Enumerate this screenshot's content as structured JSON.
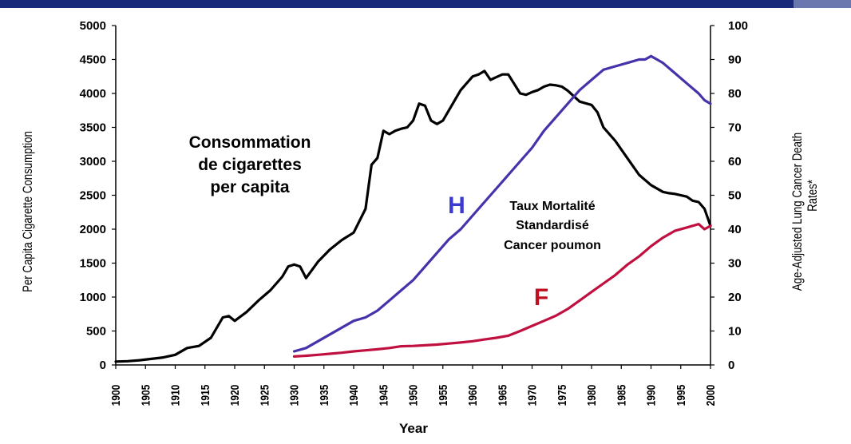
{
  "chart_data": {
    "type": "line",
    "xlabel": "Year",
    "ylabel_left": "Per Capita Cigarette Consumption",
    "ylabel_right_line1": "Age-Adjusted Lung Cancer Death",
    "ylabel_right_line2": "Rates*",
    "xlim": [
      1900,
      2000
    ],
    "ylim_left": [
      0,
      5000
    ],
    "ylim_right": [
      0,
      100
    ],
    "x_ticks": [
      "1900",
      "1905",
      "1910",
      "1915",
      "1920",
      "1925",
      "1930",
      "1935",
      "1940",
      "1945",
      "1950",
      "1955",
      "1960",
      "1965",
      "1970",
      "1975",
      "1980",
      "1985",
      "1990",
      "1995",
      "2000"
    ],
    "y_left_ticks": [
      "0",
      "500",
      "1000",
      "1500",
      "2000",
      "2500",
      "3000",
      "3500",
      "4000",
      "4500",
      "5000"
    ],
    "y_right_ticks": [
      "0",
      "10",
      "20",
      "30",
      "40",
      "50",
      "60",
      "70",
      "80",
      "90",
      "100"
    ],
    "series": [
      {
        "name": "Consommation de cigarettes per capita",
        "axis": "left",
        "color": "#000000",
        "x": [
          1900,
          1902,
          1904,
          1906,
          1908,
          1910,
          1912,
          1914,
          1916,
          1918,
          1919,
          1920,
          1922,
          1924,
          1926,
          1928,
          1929,
          1930,
          1931,
          1932,
          1934,
          1936,
          1938,
          1940,
          1942,
          1943,
          1944,
          1945,
          1946,
          1947,
          1948,
          1949,
          1950,
          1951,
          1952,
          1953,
          1954,
          1955,
          1956,
          1958,
          1960,
          1961,
          1962,
          1963,
          1964,
          1965,
          1966,
          1968,
          1969,
          1970,
          1971,
          1972,
          1973,
          1974,
          1975,
          1976,
          1978,
          1980,
          1981,
          1982,
          1984,
          1986,
          1988,
          1990,
          1992,
          1993,
          1994,
          1996,
          1997,
          1998,
          1999,
          2000
        ],
        "values": [
          50,
          55,
          70,
          90,
          110,
          150,
          250,
          280,
          400,
          700,
          720,
          650,
          780,
          950,
          1100,
          1300,
          1450,
          1480,
          1450,
          1280,
          1520,
          1700,
          1840,
          1950,
          2300,
          2950,
          3050,
          3450,
          3400,
          3450,
          3480,
          3500,
          3600,
          3850,
          3820,
          3600,
          3550,
          3600,
          3750,
          4050,
          4250,
          4280,
          4330,
          4200,
          4240,
          4280,
          4280,
          4000,
          3980,
          4020,
          4050,
          4100,
          4130,
          4120,
          4100,
          4040,
          3880,
          3830,
          3720,
          3500,
          3300,
          3050,
          2800,
          2650,
          2550,
          2530,
          2520,
          2480,
          2420,
          2400,
          2300,
          2050
        ]
      },
      {
        "name": "H",
        "axis": "right",
        "color": "#4433aa",
        "x": [
          1930,
          1932,
          1934,
          1936,
          1938,
          1940,
          1942,
          1944,
          1946,
          1948,
          1950,
          1952,
          1954,
          1956,
          1958,
          1960,
          1962,
          1964,
          1966,
          1968,
          1970,
          1972,
          1974,
          1976,
          1978,
          1980,
          1982,
          1984,
          1986,
          1988,
          1989,
          1990,
          1991,
          1992,
          1994,
          1996,
          1998,
          1999,
          2000
        ],
        "values": [
          4,
          5,
          7,
          9,
          11,
          13,
          14,
          16,
          19,
          22,
          25,
          29,
          33,
          37,
          40,
          44,
          48,
          52,
          56,
          60,
          64,
          69,
          73,
          77,
          81,
          84,
          87,
          88,
          89,
          90,
          90,
          91,
          90,
          89,
          86,
          83,
          80,
          78,
          77
        ]
      },
      {
        "name": "F",
        "axis": "right",
        "color": "#c01040",
        "x": [
          1930,
          1932,
          1934,
          1936,
          1938,
          1940,
          1942,
          1944,
          1946,
          1948,
          1950,
          1952,
          1954,
          1956,
          1958,
          1960,
          1962,
          1964,
          1966,
          1968,
          1970,
          1972,
          1974,
          1976,
          1978,
          1980,
          1982,
          1984,
          1986,
          1988,
          1990,
          1992,
          1994,
          1996,
          1998,
          1999,
          2000
        ],
        "values": [
          2.5,
          2.7,
          3,
          3.3,
          3.6,
          4,
          4.3,
          4.6,
          5,
          5.5,
          5.6,
          5.8,
          6,
          6.3,
          6.6,
          7,
          7.5,
          8,
          8.6,
          10,
          11.5,
          13,
          14.5,
          16.5,
          19,
          21.5,
          24,
          26.5,
          29.5,
          32,
          35,
          37.5,
          39.5,
          40.5,
          41.5,
          40,
          41
        ]
      }
    ],
    "annotations": {
      "consumption": [
        "Consommation",
        "de cigarettes",
        "per capita"
      ],
      "mortality": [
        "Taux Mortalité",
        "Standardisé",
        "Cancer poumon"
      ],
      "men_label": "H",
      "women_label": "F"
    }
  }
}
